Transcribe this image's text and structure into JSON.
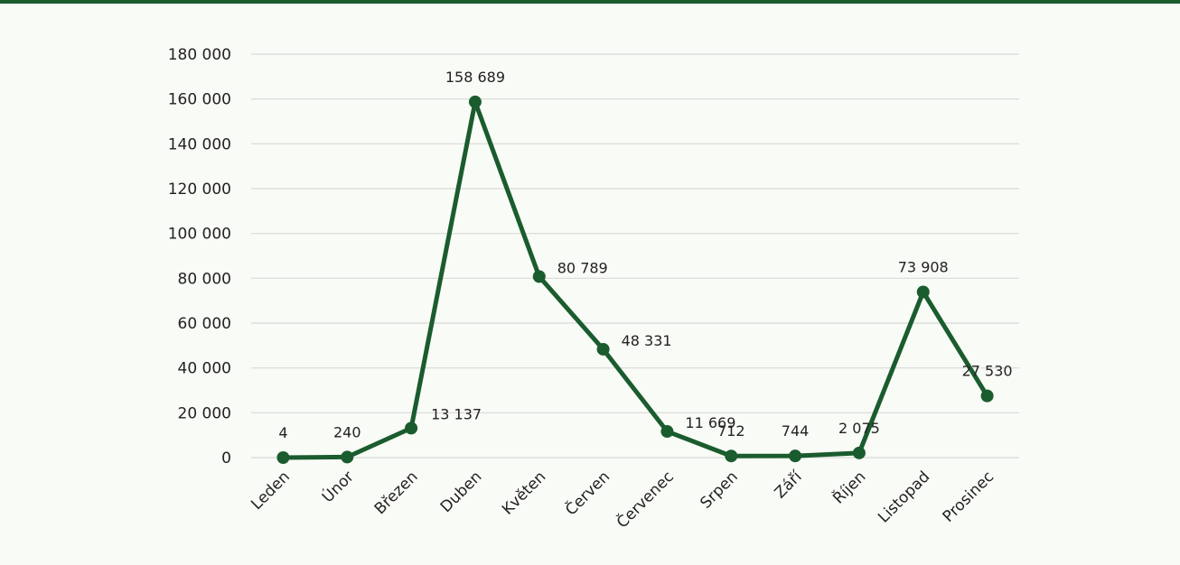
{
  "chart_data": {
    "type": "line",
    "title": "",
    "xlabel": "",
    "ylabel": "",
    "ylim": [
      0,
      180000
    ],
    "ytick_step": 20000,
    "yticks": [
      "0",
      "20 000",
      "40 000",
      "60 000",
      "80 000",
      "100 000",
      "120 000",
      "140 000",
      "160 000",
      "180 000"
    ],
    "categories": [
      "Leden",
      "Únor",
      "Březen",
      "Duben",
      "Květen",
      "Červen",
      "Červenec",
      "Srpen",
      "Září",
      "Říjen",
      "Listopad",
      "Prosinec"
    ],
    "series": [
      {
        "values": [
          4,
          240,
          13137,
          158689,
          80789,
          48331,
          11669,
          712,
          744,
          2075,
          73908,
          27530
        ],
        "labels": [
          "4",
          "240",
          "13 137",
          "158 689",
          "80 789",
          "48 331",
          "11 669",
          "712",
          "744",
          "2 075",
          "73 908",
          "27 530"
        ]
      }
    ],
    "grid": true,
    "legend": "none",
    "colors": {
      "line": "#1a5c2e",
      "grid": "#d9d9d9",
      "top_bar": "#1a5c2e",
      "background": "#f9fbf6"
    }
  }
}
